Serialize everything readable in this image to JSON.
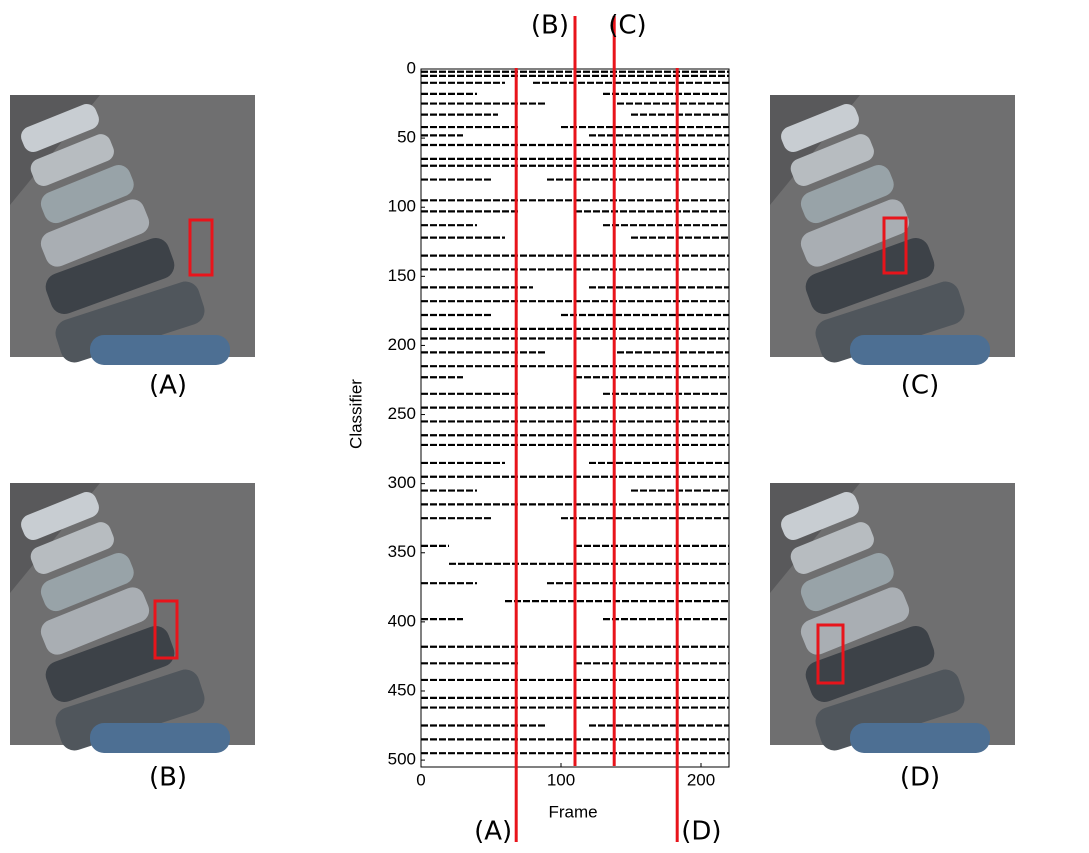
{
  "chart_data": {
    "type": "activation-raster",
    "x_label": "Frame",
    "y_label": "Classifier",
    "xlim": [
      0,
      220
    ],
    "ylim": [
      0,
      505
    ],
    "xticks": [
      0,
      100,
      200
    ],
    "yticks": [
      0,
      50,
      100,
      150,
      200,
      250,
      300,
      350,
      400,
      450,
      500
    ],
    "marker_color": "#e8141b",
    "markers": [
      {
        "label": "(A)",
        "frame": 68,
        "side": "bottom"
      },
      {
        "label": "(B)",
        "frame": 110,
        "side": "top"
      },
      {
        "label": "(C)",
        "frame": 138,
        "side": "top"
      },
      {
        "label": "(D)",
        "frame": 183,
        "side": "bottom"
      }
    ],
    "rows": [
      {
        "classifier": 2,
        "segments": [
          [
            0,
            220
          ]
        ]
      },
      {
        "classifier": 5,
        "segments": [
          [
            0,
            220
          ]
        ]
      },
      {
        "classifier": 10,
        "segments": [
          [
            0,
            60
          ],
          [
            80,
            220
          ]
        ]
      },
      {
        "classifier": 18,
        "segments": [
          [
            0,
            40
          ],
          [
            130,
            220
          ]
        ]
      },
      {
        "classifier": 25,
        "segments": [
          [
            0,
            90
          ],
          [
            140,
            220
          ]
        ]
      },
      {
        "classifier": 33,
        "segments": [
          [
            0,
            55
          ],
          [
            150,
            220
          ]
        ]
      },
      {
        "classifier": 42,
        "segments": [
          [
            0,
            70
          ],
          [
            100,
            220
          ]
        ]
      },
      {
        "classifier": 48,
        "segments": [
          [
            0,
            30
          ],
          [
            120,
            220
          ]
        ]
      },
      {
        "classifier": 55,
        "segments": [
          [
            0,
            220
          ]
        ]
      },
      {
        "classifier": 65,
        "segments": [
          [
            0,
            220
          ]
        ]
      },
      {
        "classifier": 70,
        "segments": [
          [
            0,
            220
          ]
        ]
      },
      {
        "classifier": 80,
        "segments": [
          [
            0,
            50
          ],
          [
            90,
            220
          ]
        ]
      },
      {
        "classifier": 95,
        "segments": [
          [
            0,
            220
          ]
        ]
      },
      {
        "classifier": 103,
        "segments": [
          [
            0,
            70
          ],
          [
            110,
            220
          ]
        ]
      },
      {
        "classifier": 113,
        "segments": [
          [
            0,
            40
          ],
          [
            130,
            220
          ]
        ]
      },
      {
        "classifier": 122,
        "segments": [
          [
            0,
            60
          ],
          [
            150,
            220
          ]
        ]
      },
      {
        "classifier": 135,
        "segments": [
          [
            0,
            220
          ]
        ]
      },
      {
        "classifier": 145,
        "segments": [
          [
            0,
            220
          ]
        ]
      },
      {
        "classifier": 158,
        "segments": [
          [
            0,
            80
          ],
          [
            120,
            220
          ]
        ]
      },
      {
        "classifier": 168,
        "segments": [
          [
            0,
            220
          ]
        ]
      },
      {
        "classifier": 178,
        "segments": [
          [
            0,
            50
          ],
          [
            100,
            220
          ]
        ]
      },
      {
        "classifier": 188,
        "segments": [
          [
            0,
            220
          ]
        ]
      },
      {
        "classifier": 195,
        "segments": [
          [
            0,
            220
          ]
        ]
      },
      {
        "classifier": 205,
        "segments": [
          [
            0,
            90
          ],
          [
            140,
            220
          ]
        ]
      },
      {
        "classifier": 215,
        "segments": [
          [
            0,
            220
          ]
        ]
      },
      {
        "classifier": 223,
        "segments": [
          [
            0,
            30
          ],
          [
            110,
            220
          ]
        ]
      },
      {
        "classifier": 235,
        "segments": [
          [
            0,
            70
          ],
          [
            130,
            220
          ]
        ]
      },
      {
        "classifier": 245,
        "segments": [
          [
            0,
            220
          ]
        ]
      },
      {
        "classifier": 255,
        "segments": [
          [
            0,
            220
          ]
        ]
      },
      {
        "classifier": 265,
        "segments": [
          [
            0,
            220
          ]
        ]
      },
      {
        "classifier": 272,
        "segments": [
          [
            0,
            220
          ]
        ]
      },
      {
        "classifier": 285,
        "segments": [
          [
            0,
            60
          ],
          [
            120,
            220
          ]
        ]
      },
      {
        "classifier": 295,
        "segments": [
          [
            0,
            220
          ]
        ]
      },
      {
        "classifier": 305,
        "segments": [
          [
            0,
            40
          ],
          [
            150,
            220
          ]
        ]
      },
      {
        "classifier": 315,
        "segments": [
          [
            0,
            220
          ]
        ]
      },
      {
        "classifier": 325,
        "segments": [
          [
            0,
            50
          ],
          [
            100,
            220
          ]
        ]
      },
      {
        "classifier": 345,
        "segments": [
          [
            0,
            20
          ],
          [
            110,
            220
          ]
        ]
      },
      {
        "classifier": 358,
        "segments": [
          [
            20,
            220
          ]
        ]
      },
      {
        "classifier": 372,
        "segments": [
          [
            0,
            40
          ],
          [
            90,
            220
          ]
        ]
      },
      {
        "classifier": 385,
        "segments": [
          [
            60,
            220
          ]
        ]
      },
      {
        "classifier": 398,
        "segments": [
          [
            0,
            30
          ],
          [
            130,
            220
          ]
        ]
      },
      {
        "classifier": 418,
        "segments": [
          [
            0,
            220
          ]
        ]
      },
      {
        "classifier": 430,
        "segments": [
          [
            0,
            70
          ],
          [
            110,
            220
          ]
        ]
      },
      {
        "classifier": 442,
        "segments": [
          [
            0,
            220
          ]
        ]
      },
      {
        "classifier": 455,
        "segments": [
          [
            0,
            220
          ]
        ]
      },
      {
        "classifier": 462,
        "segments": [
          [
            0,
            220
          ]
        ]
      },
      {
        "classifier": 475,
        "segments": [
          [
            0,
            90
          ],
          [
            120,
            220
          ]
        ]
      },
      {
        "classifier": 485,
        "segments": [
          [
            0,
            220
          ]
        ]
      },
      {
        "classifier": 495,
        "segments": [
          [
            0,
            220
          ]
        ]
      }
    ]
  },
  "panels": [
    {
      "label": "(A)"
    },
    {
      "label": "(B)"
    },
    {
      "label": "(C)"
    },
    {
      "label": "(D)"
    }
  ]
}
